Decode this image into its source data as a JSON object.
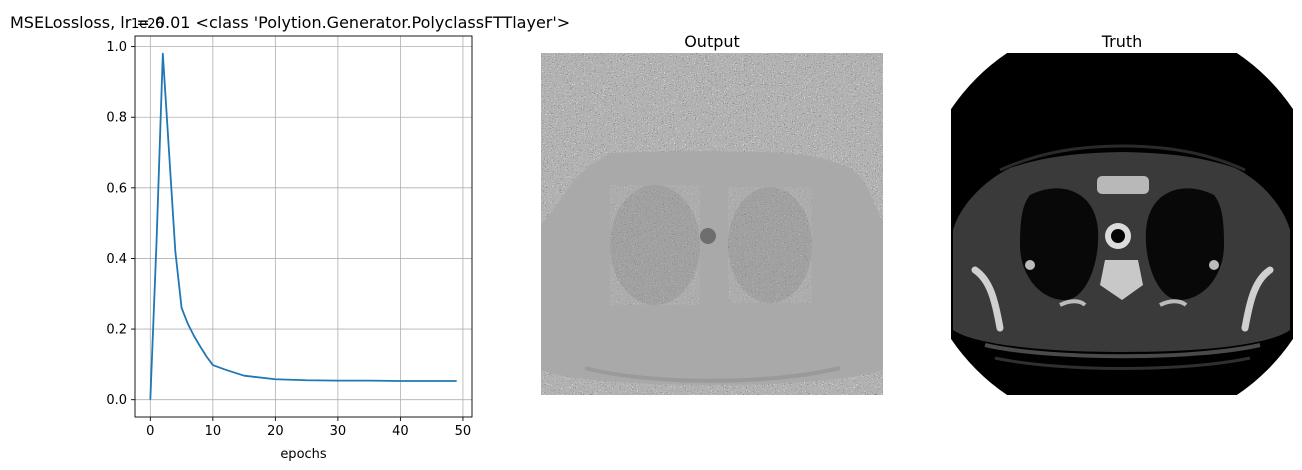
{
  "chart_data": [
    {
      "type": "line",
      "title": "MSELossloss, lr = 0.01 <class 'Polytion.Generator.PolyclassFTTlayer'>",
      "xlabel": "epochs",
      "ylabel": "",
      "offset_text": "1e26",
      "xlim": [
        -2.45,
        51.45
      ],
      "ylim": [
        -0.049,
        1.03
      ],
      "xticks": [
        0,
        10,
        20,
        30,
        40,
        50
      ],
      "yticks": [
        0.0,
        0.2,
        0.4,
        0.6,
        0.8,
        1.0
      ],
      "xtick_labels": [
        "0",
        "10",
        "20",
        "30",
        "40",
        "50"
      ],
      "ytick_labels": [
        "0.0",
        "0.2",
        "0.4",
        "0.6",
        "0.8",
        "1.0"
      ],
      "grid": true,
      "series": [
        {
          "color": "#1f77b4",
          "x": [
            0,
            1,
            2,
            3,
            4,
            5,
            6,
            7,
            8,
            9,
            10,
            12,
            15,
            20,
            25,
            30,
            35,
            40,
            45,
            49
          ],
          "values": [
            0.0,
            0.45,
            0.98,
            0.7,
            0.42,
            0.26,
            0.215,
            0.18,
            0.15,
            0.122,
            0.098,
            0.085,
            0.068,
            0.058,
            0.055,
            0.054,
            0.054,
            0.053,
            0.053,
            0.053
          ]
        }
      ]
    },
    {
      "type": "image",
      "title": "Output",
      "description_color": "#a9a9a9"
    },
    {
      "type": "image",
      "title": "Truth",
      "description_color": "#000000"
    }
  ]
}
